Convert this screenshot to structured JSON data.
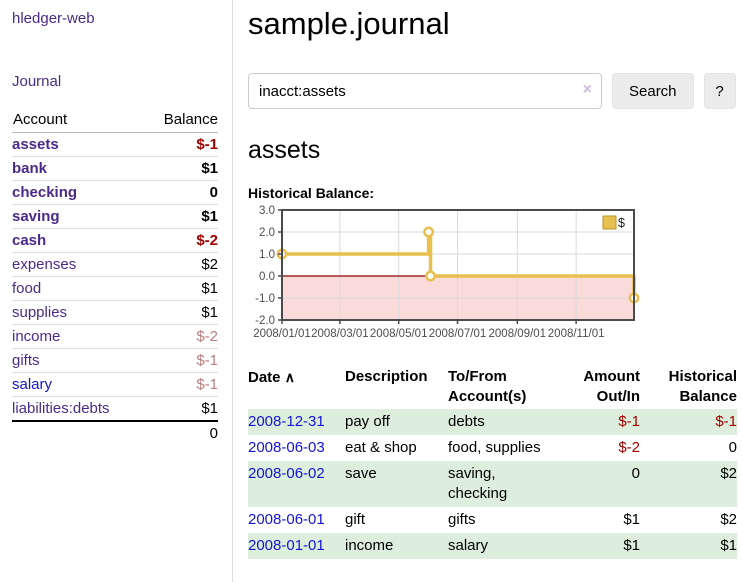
{
  "app": {
    "title": "hledger-web"
  },
  "sidebar": {
    "journal_link": "Journal",
    "accounts": {
      "headers": {
        "account": "Account",
        "balance": "Balance"
      },
      "rows": [
        {
          "name": "assets",
          "depth": 1,
          "bold": true,
          "balance": "$-1",
          "negative": "strong"
        },
        {
          "name": "bank",
          "depth": 2,
          "bold": true,
          "balance": "$1"
        },
        {
          "name": "checking",
          "depth": 3,
          "bold": true,
          "balance": "0"
        },
        {
          "name": "saving",
          "depth": 3,
          "bold": true,
          "balance": "$1"
        },
        {
          "name": "cash",
          "depth": 2,
          "bold": true,
          "balance": "$-2",
          "negative": "strong"
        },
        {
          "name": "expenses",
          "depth": 1,
          "bold": false,
          "balance": "$2"
        },
        {
          "name": "food",
          "depth": 2,
          "bold": false,
          "balance": "$1"
        },
        {
          "name": "supplies",
          "depth": 2,
          "bold": false,
          "balance": "$1"
        },
        {
          "name": "income",
          "depth": 1,
          "bold": false,
          "balance": "$-2",
          "negative": "soft"
        },
        {
          "name": "gifts",
          "depth": 2,
          "bold": false,
          "balance": "$-1",
          "negative": "soft"
        },
        {
          "name": "salary",
          "depth": 2,
          "bold": false,
          "balance": "$-1",
          "negative": "soft",
          "link_style": "blue"
        },
        {
          "name": "liabilities:debts",
          "depth": 1,
          "bold": false,
          "balance": "$1"
        }
      ],
      "total": "0"
    }
  },
  "main": {
    "title": "sample.journal",
    "search": {
      "value": "inacct:assets",
      "clear_icon": "×",
      "button_label": "Search",
      "help_label": "?"
    },
    "account_heading": "assets"
  },
  "chart_data": {
    "type": "line",
    "title": "Historical Balance:",
    "step": true,
    "series": [
      {
        "name": "$",
        "color": "#e7c04f",
        "points": [
          {
            "date": "2008-01-01",
            "value": 1
          },
          {
            "date": "2008-06-01",
            "value": 2
          },
          {
            "date": "2008-06-03",
            "value": 0
          },
          {
            "date": "2008-12-31",
            "value": -1
          }
        ]
      }
    ],
    "x_domain": [
      "2008-01-01",
      "2008-12-31"
    ],
    "x_ticks": [
      "2008/01/01",
      "2008/03/01",
      "2008/05/01",
      "2008/07/01",
      "2008/09/01",
      "2008/11/01"
    ],
    "y_ticks": [
      "3.0",
      "2.0",
      "1.0",
      "0.0",
      "-1.0",
      "-2.0"
    ],
    "ylim": [
      -2,
      3
    ],
    "grid": true,
    "zero_line_color": "#8b0000",
    "negative_region_color": "#fbdada",
    "border_color": "#4a4a4a",
    "legend": {
      "label": "$",
      "position": "top-right"
    }
  },
  "register": {
    "headers": {
      "date": "Date",
      "sort_icon": "∧",
      "description": "Description",
      "tofrom_line1": "To/From",
      "tofrom_line2": "Account(s)",
      "amount_line1": "Amount",
      "amount_line2": "Out/In",
      "balance_line1": "Historical",
      "balance_line2": "Balance"
    },
    "rows": [
      {
        "date": "2008-12-31",
        "description": "pay off",
        "accounts": "debts",
        "amount": "$-1",
        "amount_negative": true,
        "balance": "$-1",
        "balance_negative": true
      },
      {
        "date": "2008-06-03",
        "description": "eat & shop",
        "accounts": "food, supplies",
        "amount": "$-2",
        "amount_negative": true,
        "balance": "0",
        "balance_negative": false
      },
      {
        "date": "2008-06-02",
        "description": "save",
        "accounts": "saving, checking",
        "amount": "0",
        "amount_negative": false,
        "balance": "$2",
        "balance_negative": false
      },
      {
        "date": "2008-06-01",
        "description": "gift",
        "accounts": "gifts",
        "amount": "$1",
        "amount_negative": false,
        "balance": "$2",
        "balance_negative": false
      },
      {
        "date": "2008-01-01",
        "description": "income",
        "accounts": "salary",
        "amount": "$1",
        "amount_negative": false,
        "balance": "$1",
        "balance_negative": false
      }
    ]
  }
}
